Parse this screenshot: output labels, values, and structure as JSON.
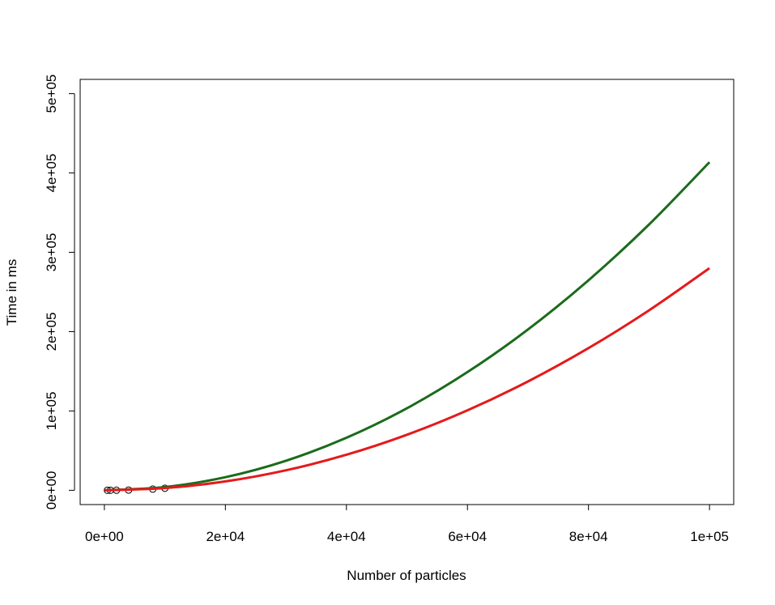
{
  "chart_data": {
    "type": "line",
    "title": "",
    "xlabel": "Number of particles",
    "ylabel": "Time in ms",
    "xlim": [
      -4000,
      104000
    ],
    "ylim": [
      -18000,
      518000
    ],
    "x_ticks": [
      0,
      20000,
      40000,
      60000,
      80000,
      100000
    ],
    "x_tick_labels": [
      "0e+00",
      "2e+04",
      "4e+04",
      "6e+04",
      "8e+04",
      "1e+05"
    ],
    "y_ticks": [
      0,
      100000,
      200000,
      300000,
      400000,
      500000
    ],
    "y_tick_labels": [
      "0e+00",
      "1e+05",
      "2e+05",
      "3e+05",
      "4e+05",
      "5e+05"
    ],
    "grid": false,
    "legend": "none",
    "series": [
      {
        "type": "line",
        "color": "#1a6b1a",
        "x": [
          0,
          10000,
          20000,
          30000,
          40000,
          50000,
          60000,
          70000,
          80000,
          90000,
          100000
        ],
        "y": [
          0,
          4100,
          16500,
          37200,
          66200,
          103400,
          149000,
          202700,
          264700,
          335000,
          413600
        ]
      },
      {
        "type": "line",
        "color": "#e41a1c",
        "x": [
          0,
          10000,
          20000,
          30000,
          40000,
          50000,
          60000,
          70000,
          80000,
          90000,
          100000
        ],
        "y": [
          0,
          2800,
          11200,
          25200,
          44800,
          70000,
          100800,
          137200,
          179200,
          226800,
          280000
        ]
      },
      {
        "type": "scatter",
        "color": "#000000",
        "x": [
          500,
          1000,
          2000,
          4000,
          8000,
          10000
        ],
        "y": [
          0,
          0,
          100,
          300,
          1500,
          2600
        ]
      }
    ]
  }
}
